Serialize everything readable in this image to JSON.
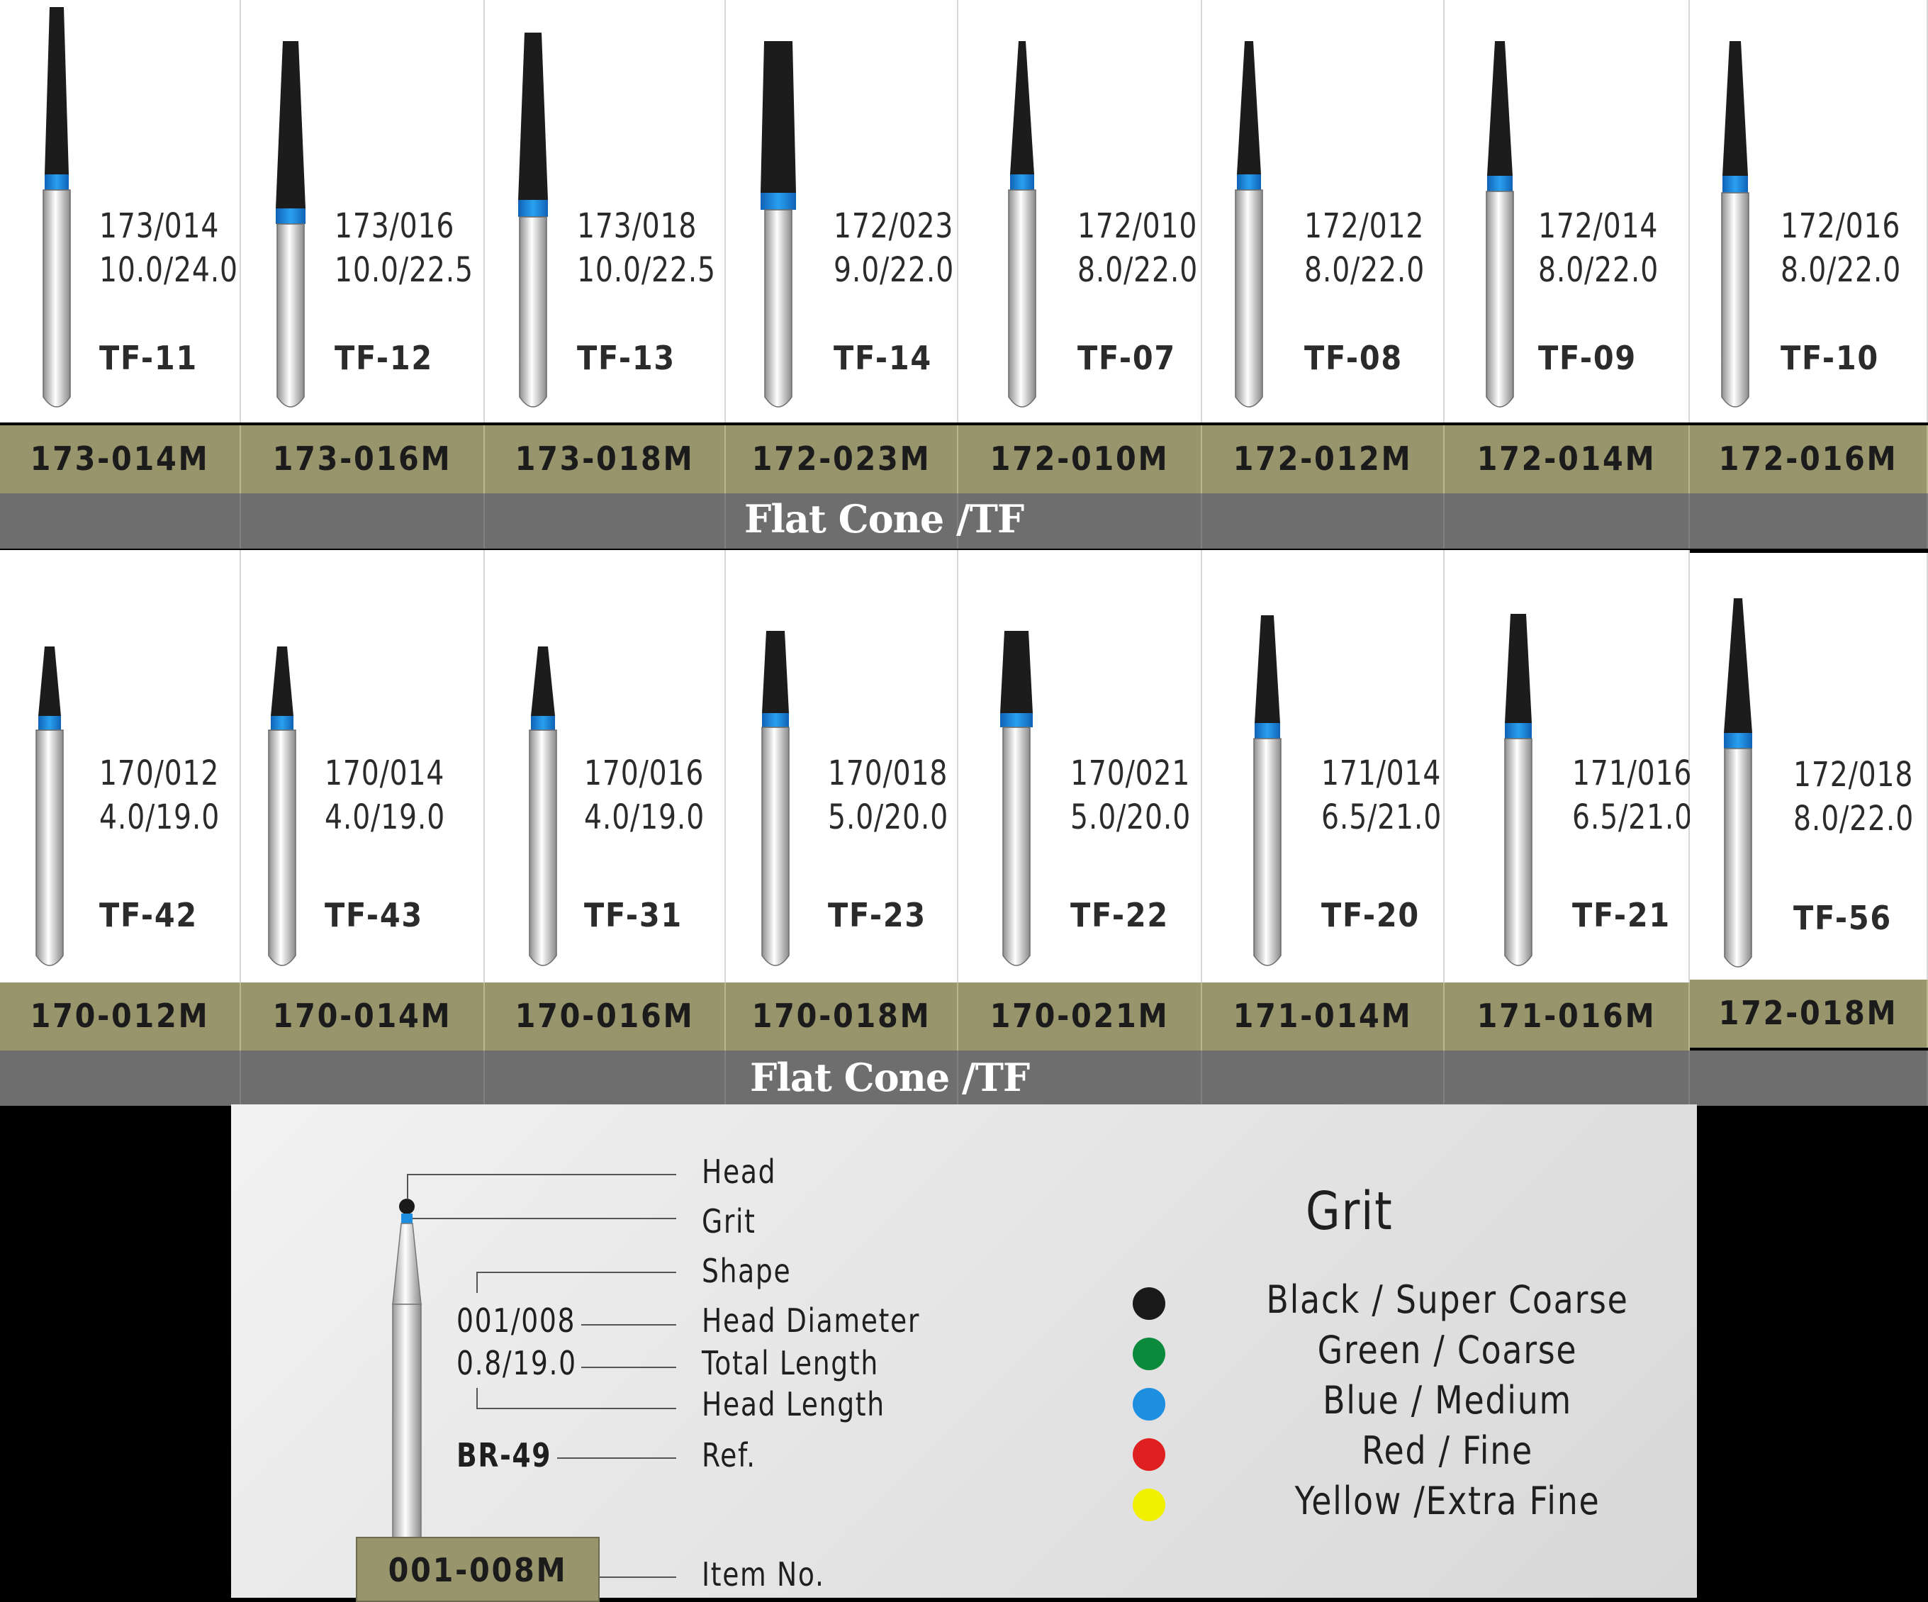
{
  "rows": [
    {
      "section_title": "Flat Cone /TF",
      "items": [
        {
          "spec": "173/014",
          "dims": "10.0/24.0",
          "ref": "TF-11",
          "code": "173-014M"
        },
        {
          "spec": "173/016",
          "dims": "10.0/22.5",
          "ref": "TF-12",
          "code": "173-016M"
        },
        {
          "spec": "173/018",
          "dims": "10.0/22.5",
          "ref": "TF-13",
          "code": "173-018M"
        },
        {
          "spec": "172/023",
          "dims": "9.0/22.0",
          "ref": "TF-14",
          "code": "172-023M"
        },
        {
          "spec": "172/010",
          "dims": "8.0/22.0",
          "ref": "TF-07",
          "code": "172-010M"
        },
        {
          "spec": "172/012",
          "dims": "8.0/22.0",
          "ref": "TF-08",
          "code": "172-012M"
        },
        {
          "spec": "172/014",
          "dims": "8.0/22.0",
          "ref": "TF-09",
          "code": "172-014M"
        },
        {
          "spec": "172/016",
          "dims": "8.0/22.0",
          "ref": "TF-10",
          "code": "172-016M"
        }
      ]
    },
    {
      "section_title": "Flat Cone /TF",
      "items": [
        {
          "spec": "170/012",
          "dims": "4.0/19.0",
          "ref": "TF-42",
          "code": "170-012M"
        },
        {
          "spec": "170/014",
          "dims": "4.0/19.0",
          "ref": "TF-43",
          "code": "170-014M"
        },
        {
          "spec": "170/016",
          "dims": "4.0/19.0",
          "ref": "TF-31",
          "code": "170-016M"
        },
        {
          "spec": "170/018",
          "dims": "5.0/20.0",
          "ref": "TF-23",
          "code": "170-018M"
        },
        {
          "spec": "170/021",
          "dims": "5.0/20.0",
          "ref": "TF-22",
          "code": "170-021M"
        },
        {
          "spec": "171/014",
          "dims": "6.5/21.0",
          "ref": "TF-20",
          "code": "171-014M"
        },
        {
          "spec": "171/016",
          "dims": "6.5/21.0",
          "ref": "TF-21",
          "code": "171-016M"
        },
        {
          "spec": "172/018",
          "dims": "8.0/22.0",
          "ref": "TF-56",
          "code": "172-018M"
        }
      ]
    }
  ],
  "legend": {
    "labels": {
      "head": "Head",
      "grit": "Grit",
      "shape": "Shape",
      "head_diameter": "Head Diameter",
      "total_length": "Total Length",
      "head_length": "Head Length",
      "ref": "Ref.",
      "item_no": "Item No."
    },
    "example": {
      "spec": "001/008",
      "dims": "0.8/19.0",
      "ref": "BR-49",
      "code": "001-008M"
    },
    "grit_title": "Grit",
    "grits": [
      {
        "color": "#1a1a1a",
        "label": "Black  /  Super Coarse"
      },
      {
        "color": "#0a8a3a",
        "label": "Green  / Coarse"
      },
      {
        "color": "#1e8ee0",
        "label": "Blue  /  Medium"
      },
      {
        "color": "#e02020",
        "label": "Red  / Fine"
      },
      {
        "color": "#f0f000",
        "label": "Yellow /Extra Fine"
      }
    ]
  }
}
